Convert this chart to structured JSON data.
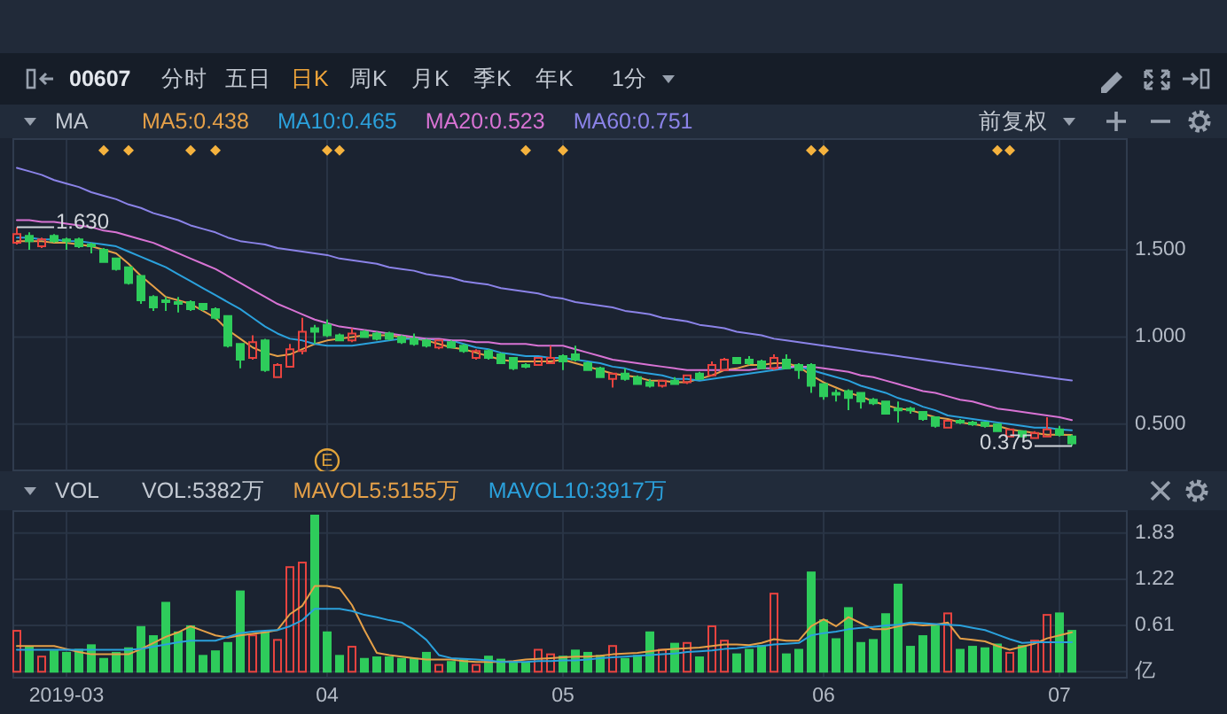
{
  "chart_data": [
    {
      "type": "candlestick",
      "title": "00607",
      "legend_title": "MA",
      "legend": "top left",
      "grid": true,
      "tick_labels": "y",
      "categories": [
        null,
        null,
        null,
        null,
        "2019-03",
        null,
        null,
        null,
        null,
        null,
        null,
        null,
        null,
        null,
        null,
        null,
        null,
        null,
        null,
        null,
        null,
        null,
        null,
        null,
        null,
        "04",
        null,
        null,
        null,
        null,
        null,
        null,
        null,
        null,
        null,
        null,
        null,
        null,
        null,
        null,
        null,
        null,
        null,
        null,
        "05",
        null,
        null,
        null,
        null,
        null,
        null,
        null,
        null,
        null,
        null,
        null,
        null,
        null,
        null,
        null,
        null,
        null,
        null,
        null,
        null,
        "06",
        null,
        null,
        null,
        null,
        null,
        null,
        null,
        null,
        null,
        null,
        null,
        null,
        null,
        null,
        null,
        null,
        null,
        null,
        "07",
        null
      ],
      "ylim": [
        0.23,
        2.14
      ],
      "yticks": [
        {
          "value": 0.5,
          "label": "0.500"
        },
        {
          "value": 1.0,
          "label": "1.000"
        },
        {
          "value": 1.5,
          "label": "1.500"
        }
      ],
      "ohlc": [
        [
          1.54,
          1.63,
          1.53,
          1.59
        ],
        [
          1.58,
          1.6,
          1.5,
          1.55
        ],
        [
          1.52,
          1.57,
          1.51,
          1.56
        ],
        [
          1.58,
          1.59,
          1.54,
          1.55
        ],
        [
          1.56,
          1.57,
          1.5,
          1.55
        ],
        [
          1.56,
          1.57,
          1.51,
          1.52
        ],
        [
          1.53,
          1.54,
          1.48,
          1.52
        ],
        [
          1.5,
          1.51,
          1.43,
          1.43
        ],
        [
          1.45,
          1.45,
          1.38,
          1.39
        ],
        [
          1.4,
          1.4,
          1.3,
          1.31
        ],
        [
          1.35,
          1.35,
          1.19,
          1.21
        ],
        [
          1.23,
          1.24,
          1.15,
          1.17
        ],
        [
          1.21,
          1.23,
          1.15,
          1.2
        ],
        [
          1.2,
          1.23,
          1.14,
          1.19
        ],
        [
          1.2,
          1.21,
          1.15,
          1.16
        ],
        [
          1.19,
          1.19,
          1.15,
          1.16
        ],
        [
          1.16,
          1.17,
          1.1,
          1.11
        ],
        [
          1.12,
          1.12,
          0.94,
          0.95
        ],
        [
          0.96,
          0.96,
          0.82,
          0.87
        ],
        [
          0.88,
          1.01,
          0.87,
          0.97
        ],
        [
          0.98,
          0.99,
          0.8,
          0.81
        ],
        [
          0.77,
          0.85,
          0.77,
          0.84
        ],
        [
          0.83,
          0.96,
          0.83,
          0.93
        ],
        [
          0.92,
          1.11,
          0.9,
          1.03
        ],
        [
          1.05,
          1.07,
          0.96,
          1.03
        ],
        [
          1.07,
          1.1,
          1.0,
          1.01
        ],
        [
          1.01,
          1.02,
          0.98,
          0.98
        ],
        [
          0.98,
          1.05,
          0.97,
          1.02
        ],
        [
          1.03,
          1.04,
          1.0,
          1.0
        ],
        [
          1.02,
          1.03,
          0.98,
          0.99
        ],
        [
          1.02,
          1.03,
          0.98,
          0.99
        ],
        [
          1.0,
          1.01,
          0.96,
          0.97
        ],
        [
          0.99,
          1.02,
          0.95,
          0.96
        ],
        [
          0.98,
          0.99,
          0.94,
          0.95
        ],
        [
          0.94,
          0.98,
          0.93,
          0.98
        ],
        [
          0.97,
          0.98,
          0.94,
          0.94
        ],
        [
          0.95,
          0.96,
          0.91,
          0.92
        ],
        [
          0.88,
          0.93,
          0.87,
          0.92
        ],
        [
          0.92,
          0.93,
          0.87,
          0.88
        ],
        [
          0.9,
          0.91,
          0.85,
          0.85
        ],
        [
          0.88,
          0.88,
          0.81,
          0.82
        ],
        [
          0.84,
          0.85,
          0.82,
          0.83
        ],
        [
          0.84,
          0.88,
          0.84,
          0.88
        ],
        [
          0.85,
          0.95,
          0.85,
          0.88
        ],
        [
          0.89,
          0.9,
          0.81,
          0.86
        ],
        [
          0.9,
          0.95,
          0.86,
          0.87
        ],
        [
          0.85,
          0.86,
          0.81,
          0.81
        ],
        [
          0.82,
          0.83,
          0.77,
          0.77
        ],
        [
          0.76,
          0.79,
          0.71,
          0.79
        ],
        [
          0.79,
          0.82,
          0.75,
          0.76
        ],
        [
          0.77,
          0.78,
          0.73,
          0.73
        ],
        [
          0.74,
          0.76,
          0.71,
          0.72
        ],
        [
          0.72,
          0.75,
          0.71,
          0.75
        ],
        [
          0.75,
          0.77,
          0.73,
          0.73
        ],
        [
          0.74,
          0.78,
          0.73,
          0.78
        ],
        [
          0.79,
          0.8,
          0.76,
          0.76
        ],
        [
          0.78,
          0.86,
          0.78,
          0.84
        ],
        [
          0.81,
          0.88,
          0.81,
          0.87
        ],
        [
          0.88,
          0.88,
          0.85,
          0.85
        ],
        [
          0.87,
          0.89,
          0.84,
          0.85
        ],
        [
          0.86,
          0.87,
          0.82,
          0.82
        ],
        [
          0.82,
          0.9,
          0.81,
          0.88
        ],
        [
          0.87,
          0.9,
          0.82,
          0.82
        ],
        [
          0.84,
          0.85,
          0.76,
          0.81
        ],
        [
          0.84,
          0.85,
          0.68,
          0.72
        ],
        [
          0.73,
          0.73,
          0.64,
          0.66
        ],
        [
          0.68,
          0.7,
          0.63,
          0.67
        ],
        [
          0.69,
          0.7,
          0.58,
          0.65
        ],
        [
          0.68,
          0.68,
          0.59,
          0.63
        ],
        [
          0.64,
          0.65,
          0.61,
          0.62
        ],
        [
          0.63,
          0.63,
          0.56,
          0.56
        ],
        [
          0.59,
          0.63,
          0.51,
          0.58
        ],
        [
          0.59,
          0.6,
          0.56,
          0.58
        ],
        [
          0.57,
          0.57,
          0.52,
          0.53
        ],
        [
          0.54,
          0.54,
          0.48,
          0.49
        ],
        [
          0.48,
          0.52,
          0.48,
          0.52
        ],
        [
          0.52,
          0.53,
          0.5,
          0.51
        ],
        [
          0.51,
          0.52,
          0.49,
          0.5
        ],
        [
          0.51,
          0.51,
          0.48,
          0.49
        ],
        [
          0.5,
          0.5,
          0.46,
          0.46
        ],
        [
          0.43,
          0.47,
          0.43,
          0.47
        ],
        [
          0.46,
          0.46,
          0.43,
          0.43
        ],
        [
          0.42,
          0.46,
          0.42,
          0.45
        ],
        [
          0.43,
          0.54,
          0.43,
          0.47
        ],
        [
          0.47,
          0.49,
          0.43,
          0.44
        ],
        [
          0.43,
          0.44,
          0.375,
          0.39
        ]
      ],
      "colors": [
        "#e8433f",
        "#2ecc5b",
        "#e8433f",
        "#2ecc5b",
        "#2ecc5b",
        "#2ecc5b",
        "#2ecc5b",
        "#2ecc5b",
        "#2ecc5b",
        "#2ecc5b",
        "#2ecc5b",
        "#2ecc5b",
        "#2ecc5b",
        "#2ecc5b",
        "#2ecc5b",
        "#2ecc5b",
        "#2ecc5b",
        "#2ecc5b",
        "#2ecc5b",
        "#e8433f",
        "#2ecc5b",
        "#e8433f",
        "#e8433f",
        "#e8433f",
        "#2ecc5b",
        "#2ecc5b",
        "#2ecc5b",
        "#e8433f",
        "#2ecc5b",
        "#2ecc5b",
        "#2ecc5b",
        "#2ecc5b",
        "#2ecc5b",
        "#2ecc5b",
        "#e8433f",
        "#2ecc5b",
        "#2ecc5b",
        "#e8433f",
        "#2ecc5b",
        "#2ecc5b",
        "#2ecc5b",
        "#2ecc5b",
        "#e8433f",
        "#e8433f",
        "#2ecc5b",
        "#2ecc5b",
        "#2ecc5b",
        "#2ecc5b",
        "#e8433f",
        "#2ecc5b",
        "#2ecc5b",
        "#2ecc5b",
        "#e8433f",
        "#2ecc5b",
        "#e8433f",
        "#2ecc5b",
        "#e8433f",
        "#e8433f",
        "#2ecc5b",
        "#2ecc5b",
        "#2ecc5b",
        "#e8433f",
        "#2ecc5b",
        "#2ecc5b",
        "#2ecc5b",
        "#2ecc5b",
        "#2ecc5b",
        "#2ecc5b",
        "#2ecc5b",
        "#2ecc5b",
        "#2ecc5b",
        "#2ecc5b",
        "#2ecc5b",
        "#2ecc5b",
        "#2ecc5b",
        "#e8433f",
        "#2ecc5b",
        "#2ecc5b",
        "#2ecc5b",
        "#2ecc5b",
        "#e8433f",
        "#2ecc5b",
        "#e8433f",
        "#e8433f",
        "#2ecc5b",
        "#2ecc5b"
      ],
      "series": [
        {
          "name": "MA5:0.438",
          "type": "line",
          "color": "#e5a048",
          "values": [
            1.55,
            1.55,
            1.55,
            1.54,
            1.54,
            1.53,
            1.52,
            1.5,
            1.48,
            1.42,
            1.35,
            1.29,
            1.23,
            1.21,
            1.19,
            1.15,
            1.11,
            1.04,
            0.99,
            0.94,
            0.91,
            0.89,
            0.9,
            0.93,
            0.96,
            0.98,
            0.99,
            1.0,
            1.01,
            1.01,
            1.01,
            1.0,
            0.99,
            0.98,
            0.96,
            0.94,
            0.93,
            0.91,
            0.89,
            0.87,
            0.86,
            0.86,
            0.86,
            0.86,
            0.87,
            0.85,
            0.83,
            0.81,
            0.79,
            0.78,
            0.77,
            0.75,
            0.75,
            0.74,
            0.74,
            0.76,
            0.78,
            0.81,
            0.82,
            0.84,
            0.84,
            0.85,
            0.85,
            0.83,
            0.78,
            0.74,
            0.71,
            0.68,
            0.66,
            0.63,
            0.61,
            0.59,
            0.58,
            0.56,
            0.54,
            0.53,
            0.51,
            0.5,
            0.49,
            0.49,
            0.47,
            0.46,
            0.45,
            0.44,
            0.44,
            0.438
          ]
        },
        {
          "name": "MA10:0.465",
          "type": "line",
          "color": "#2ba1dc",
          "values": [
            1.57,
            1.57,
            1.56,
            1.56,
            1.55,
            1.55,
            1.54,
            1.53,
            1.52,
            1.49,
            1.46,
            1.43,
            1.4,
            1.36,
            1.32,
            1.28,
            1.24,
            1.2,
            1.16,
            1.11,
            1.06,
            1.02,
            0.99,
            0.98,
            0.96,
            0.95,
            0.95,
            0.95,
            0.96,
            0.97,
            0.98,
            0.99,
            0.99,
            0.99,
            0.98,
            0.98,
            0.96,
            0.94,
            0.93,
            0.91,
            0.9,
            0.89,
            0.89,
            0.88,
            0.88,
            0.87,
            0.86,
            0.85,
            0.83,
            0.82,
            0.8,
            0.79,
            0.78,
            0.76,
            0.76,
            0.75,
            0.76,
            0.77,
            0.78,
            0.79,
            0.8,
            0.81,
            0.82,
            0.83,
            0.81,
            0.79,
            0.77,
            0.75,
            0.72,
            0.7,
            0.68,
            0.65,
            0.63,
            0.6,
            0.58,
            0.55,
            0.54,
            0.53,
            0.52,
            0.51,
            0.5,
            0.49,
            0.48,
            0.48,
            0.47,
            0.465
          ]
        },
        {
          "name": "MA20:0.523",
          "type": "line",
          "color": "#d873d4",
          "values": [
            1.67,
            1.67,
            1.66,
            1.66,
            1.65,
            1.64,
            1.63,
            1.61,
            1.6,
            1.58,
            1.56,
            1.54,
            1.51,
            1.48,
            1.45,
            1.42,
            1.39,
            1.35,
            1.31,
            1.27,
            1.23,
            1.19,
            1.16,
            1.13,
            1.1,
            1.08,
            1.06,
            1.05,
            1.04,
            1.03,
            1.02,
            1.01,
            1.0,
            0.99,
            0.99,
            0.98,
            0.98,
            0.97,
            0.97,
            0.96,
            0.96,
            0.96,
            0.95,
            0.95,
            0.95,
            0.93,
            0.91,
            0.89,
            0.87,
            0.86,
            0.85,
            0.84,
            0.83,
            0.82,
            0.81,
            0.81,
            0.81,
            0.81,
            0.81,
            0.81,
            0.82,
            0.82,
            0.83,
            0.83,
            0.83,
            0.82,
            0.81,
            0.8,
            0.78,
            0.77,
            0.75,
            0.73,
            0.71,
            0.69,
            0.68,
            0.66,
            0.64,
            0.63,
            0.61,
            0.59,
            0.58,
            0.57,
            0.56,
            0.55,
            0.54,
            0.523
          ]
        },
        {
          "name": "MA60:0.751",
          "type": "line",
          "color": "#8b83e8",
          "values": [
            1.97,
            1.95,
            1.93,
            1.9,
            1.88,
            1.86,
            1.83,
            1.81,
            1.79,
            1.76,
            1.74,
            1.71,
            1.69,
            1.67,
            1.64,
            1.62,
            1.6,
            1.57,
            1.55,
            1.54,
            1.53,
            1.51,
            1.5,
            1.49,
            1.48,
            1.47,
            1.45,
            1.44,
            1.43,
            1.42,
            1.4,
            1.39,
            1.38,
            1.36,
            1.35,
            1.34,
            1.32,
            1.31,
            1.3,
            1.28,
            1.27,
            1.26,
            1.25,
            1.23,
            1.22,
            1.2,
            1.19,
            1.18,
            1.17,
            1.15,
            1.14,
            1.13,
            1.11,
            1.1,
            1.09,
            1.07,
            1.06,
            1.05,
            1.03,
            1.02,
            1.01,
            0.99,
            0.98,
            0.97,
            0.96,
            0.95,
            0.94,
            0.93,
            0.92,
            0.91,
            0.9,
            0.89,
            0.88,
            0.87,
            0.86,
            0.85,
            0.84,
            0.83,
            0.82,
            0.81,
            0.8,
            0.79,
            0.78,
            0.77,
            0.76,
            0.751
          ]
        },
        {
          "type": "scatter",
          "marker": "diamond",
          "color": "#f5b23e",
          "values": [
            null,
            null,
            null,
            null,
            null,
            null,
            null,
            2.07,
            null,
            2.07,
            null,
            null,
            null,
            null,
            2.07,
            null,
            2.07,
            null,
            null,
            null,
            null,
            null,
            null,
            null,
            null,
            2.07,
            2.07,
            null,
            null,
            null,
            null,
            null,
            null,
            null,
            null,
            null,
            null,
            null,
            null,
            null,
            null,
            2.07,
            null,
            null,
            2.07,
            null,
            null,
            null,
            null,
            null,
            null,
            null,
            null,
            null,
            null,
            null,
            null,
            null,
            null,
            null,
            null,
            null,
            null,
            null,
            2.07,
            2.07,
            null,
            null,
            null,
            null,
            null,
            null,
            null,
            null,
            null,
            null,
            null,
            null,
            null,
            2.07,
            2.07,
            null,
            null,
            null,
            null,
            null
          ]
        }
      ],
      "ref_lines": [
        {
          "axis": "y",
          "value": 0.375,
          "label": "0.375",
          "color": "#d2d6dc"
        }
      ],
      "annotations": [
        "分时",
        "五日",
        "日K",
        "周K",
        "月K",
        "季K",
        "年K",
        "1分",
        "前复权",
        {
          "text": "1.630",
          "y": 1.63
        },
        {
          "text": "E",
          "x": "04",
          "y": 0.29
        }
      ]
    },
    {
      "type": "bar",
      "legend_title": "VOL",
      "legend": "top left",
      "grid": true,
      "categories": [
        null,
        null,
        null,
        null,
        "2019-03",
        null,
        null,
        null,
        null,
        null,
        null,
        null,
        null,
        null,
        null,
        null,
        null,
        null,
        null,
        null,
        null,
        null,
        null,
        null,
        null,
        "04",
        null,
        null,
        null,
        null,
        null,
        null,
        null,
        null,
        null,
        null,
        null,
        null,
        null,
        null,
        null,
        null,
        null,
        null,
        "05",
        null,
        null,
        null,
        null,
        null,
        null,
        null,
        null,
        null,
        null,
        null,
        null,
        null,
        null,
        null,
        null,
        null,
        null,
        null,
        null,
        "06",
        null,
        null,
        null,
        null,
        null,
        null,
        null,
        null,
        null,
        null,
        null,
        null,
        null,
        null,
        null,
        null,
        null,
        null,
        "07",
        null
      ],
      "ylim": [
        -0.09,
        2.13
      ],
      "yticks": [
        {
          "value": 0,
          "label": "亿"
        },
        0.61,
        1.22,
        1.83
      ],
      "values": [
        0.54,
        0.33,
        0.2,
        0.27,
        0.25,
        0.29,
        0.35,
        0.17,
        0.25,
        0.31,
        0.59,
        0.47,
        0.91,
        0.52,
        0.6,
        0.21,
        0.27,
        0.38,
        1.06,
        0.48,
        0.52,
        0.42,
        1.38,
        1.44,
        2.06,
        0.52,
        0.21,
        0.33,
        0.17,
        0.19,
        0.19,
        0.17,
        0.17,
        0.25,
        0.09,
        0.13,
        0.16,
        0.09,
        0.2,
        0.16,
        0.13,
        0.11,
        0.29,
        0.23,
        0.2,
        0.28,
        0.25,
        0.21,
        0.34,
        0.17,
        0.21,
        0.52,
        0.29,
        0.37,
        0.38,
        0.19,
        0.6,
        0.41,
        0.23,
        0.29,
        0.34,
        1.03,
        0.23,
        0.29,
        1.31,
        0.68,
        0.43,
        0.84,
        0.38,
        0.42,
        0.76,
        1.15,
        0.33,
        0.47,
        0.6,
        0.77,
        0.29,
        0.33,
        0.31,
        0.36,
        0.25,
        0.34,
        0.41,
        0.75,
        0.77,
        0.54
      ],
      "colors": [
        "#e8433f",
        "#2ecc5b",
        "#e8433f",
        "#2ecc5b",
        "#2ecc5b",
        "#2ecc5b",
        "#2ecc5b",
        "#2ecc5b",
        "#2ecc5b",
        "#2ecc5b",
        "#2ecc5b",
        "#2ecc5b",
        "#2ecc5b",
        "#2ecc5b",
        "#2ecc5b",
        "#2ecc5b",
        "#2ecc5b",
        "#2ecc5b",
        "#2ecc5b",
        "#e8433f",
        "#2ecc5b",
        "#e8433f",
        "#e8433f",
        "#e8433f",
        "#2ecc5b",
        "#2ecc5b",
        "#2ecc5b",
        "#e8433f",
        "#2ecc5b",
        "#2ecc5b",
        "#2ecc5b",
        "#2ecc5b",
        "#2ecc5b",
        "#2ecc5b",
        "#e8433f",
        "#2ecc5b",
        "#2ecc5b",
        "#e8433f",
        "#2ecc5b",
        "#2ecc5b",
        "#2ecc5b",
        "#2ecc5b",
        "#e8433f",
        "#e8433f",
        "#2ecc5b",
        "#2ecc5b",
        "#2ecc5b",
        "#2ecc5b",
        "#e8433f",
        "#2ecc5b",
        "#2ecc5b",
        "#2ecc5b",
        "#e8433f",
        "#2ecc5b",
        "#e8433f",
        "#2ecc5b",
        "#e8433f",
        "#e8433f",
        "#2ecc5b",
        "#2ecc5b",
        "#2ecc5b",
        "#e8433f",
        "#2ecc5b",
        "#2ecc5b",
        "#2ecc5b",
        "#2ecc5b",
        "#2ecc5b",
        "#2ecc5b",
        "#2ecc5b",
        "#2ecc5b",
        "#2ecc5b",
        "#2ecc5b",
        "#2ecc5b",
        "#2ecc5b",
        "#2ecc5b",
        "#e8433f",
        "#2ecc5b",
        "#2ecc5b",
        "#2ecc5b",
        "#2ecc5b",
        "#e8433f",
        "#2ecc5b",
        "#e8433f",
        "#e8433f",
        "#2ecc5b",
        "#2ecc5b"
      ],
      "series": [
        {
          "name": "MAVOL5:5155万",
          "type": "line",
          "color": "#e5a048",
          "values": [
            0.34,
            0.34,
            0.34,
            0.34,
            0.3,
            0.26,
            0.23,
            0.23,
            0.23,
            0.23,
            0.3,
            0.38,
            0.46,
            0.52,
            0.6,
            0.54,
            0.48,
            0.45,
            0.48,
            0.5,
            0.52,
            0.55,
            0.76,
            0.87,
            1.13,
            1.13,
            1.1,
            0.88,
            0.55,
            0.25,
            0.22,
            0.2,
            0.18,
            0.16,
            0.16,
            0.16,
            0.14,
            0.13,
            0.13,
            0.13,
            0.14,
            0.16,
            0.17,
            0.18,
            0.19,
            0.2,
            0.2,
            0.21,
            0.23,
            0.24,
            0.25,
            0.27,
            0.29,
            0.3,
            0.31,
            0.32,
            0.34,
            0.36,
            0.36,
            0.35,
            0.38,
            0.43,
            0.41,
            0.41,
            0.6,
            0.69,
            0.6,
            0.72,
            0.64,
            0.56,
            0.56,
            0.6,
            0.63,
            0.61,
            0.62,
            0.65,
            0.44,
            0.42,
            0.4,
            0.34,
            0.29,
            0.33,
            0.37,
            0.44,
            0.48,
            0.52
          ]
        },
        {
          "name": "MAVOL10:3917万",
          "type": "line",
          "color": "#2ba1dc",
          "values": [
            0.29,
            0.29,
            0.29,
            0.29,
            0.29,
            0.29,
            0.29,
            0.29,
            0.29,
            0.29,
            0.3,
            0.33,
            0.36,
            0.39,
            0.41,
            0.41,
            0.41,
            0.46,
            0.51,
            0.53,
            0.54,
            0.55,
            0.6,
            0.68,
            0.83,
            0.83,
            0.83,
            0.8,
            0.75,
            0.72,
            0.68,
            0.65,
            0.55,
            0.42,
            0.22,
            0.18,
            0.17,
            0.16,
            0.15,
            0.13,
            0.13,
            0.13,
            0.14,
            0.14,
            0.15,
            0.15,
            0.16,
            0.18,
            0.19,
            0.2,
            0.21,
            0.22,
            0.23,
            0.24,
            0.26,
            0.27,
            0.28,
            0.3,
            0.31,
            0.33,
            0.34,
            0.36,
            0.37,
            0.38,
            0.48,
            0.51,
            0.53,
            0.56,
            0.58,
            0.59,
            0.61,
            0.62,
            0.65,
            0.64,
            0.63,
            0.62,
            0.61,
            0.58,
            0.55,
            0.49,
            0.43,
            0.38,
            0.39,
            0.39,
            0.39,
            0.39
          ]
        }
      ],
      "annotations": [
        "VOL:5382万"
      ]
    }
  ]
}
